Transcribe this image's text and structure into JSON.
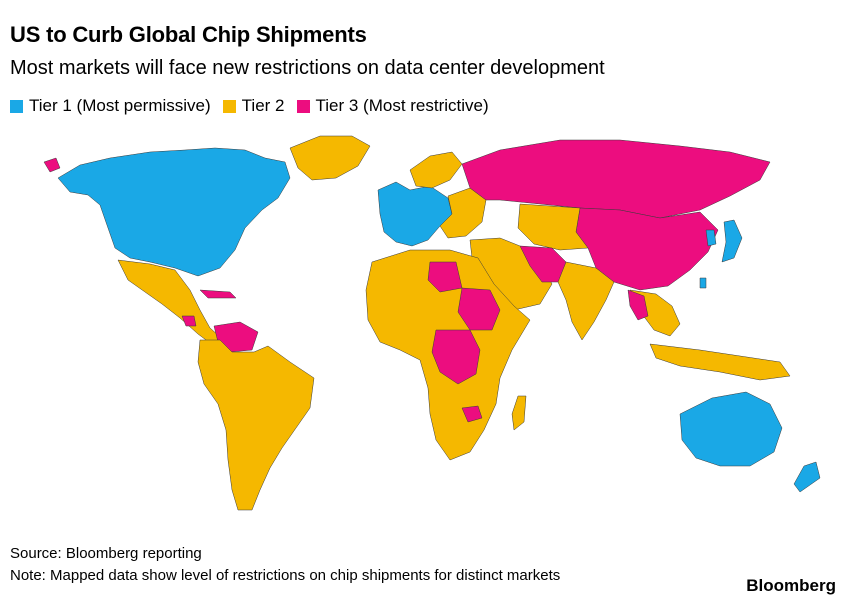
{
  "title": "US to Curb Global Chip Shipments",
  "subtitle": "Most markets will face new restrictions on data center development",
  "legend": [
    {
      "label": "Tier 1 (Most permissive)",
      "color": "#1aa8e6"
    },
    {
      "label": "Tier 2",
      "color": "#f5b800"
    },
    {
      "label": "Tier 3 (Most restrictive)",
      "color": "#ec0d7f"
    }
  ],
  "map": {
    "regions": [
      {
        "name": "north-america",
        "tier": 1
      },
      {
        "name": "greenland",
        "tier": 2
      },
      {
        "name": "alaska-east-russia",
        "tier": 3
      },
      {
        "name": "mexico-central-america",
        "tier": 2
      },
      {
        "name": "cuba",
        "tier": 3
      },
      {
        "name": "nicaragua",
        "tier": 3
      },
      {
        "name": "venezuela",
        "tier": 3
      },
      {
        "name": "south-america",
        "tier": 2
      },
      {
        "name": "western-europe",
        "tier": 1
      },
      {
        "name": "eastern-europe",
        "tier": 2
      },
      {
        "name": "russia",
        "tier": 3
      },
      {
        "name": "china",
        "tier": 3
      },
      {
        "name": "middle-east",
        "tier": 2
      },
      {
        "name": "iran",
        "tier": 3
      },
      {
        "name": "india",
        "tier": 2
      },
      {
        "name": "africa",
        "tier": 2
      },
      {
        "name": "libya",
        "tier": 3
      },
      {
        "name": "sudan-region",
        "tier": 3
      },
      {
        "name": "central-africa",
        "tier": 3
      },
      {
        "name": "zimbabwe",
        "tier": 3
      },
      {
        "name": "southeast-asia",
        "tier": 2
      },
      {
        "name": "myanmar-cambodia",
        "tier": 3
      },
      {
        "name": "japan",
        "tier": 1
      },
      {
        "name": "korea",
        "tier": 1
      },
      {
        "name": "taiwan",
        "tier": 1
      },
      {
        "name": "australia",
        "tier": 1
      },
      {
        "name": "new-zealand",
        "tier": 1
      },
      {
        "name": "madagascar",
        "tier": 2
      },
      {
        "name": "indonesia",
        "tier": 2
      }
    ]
  },
  "source": "Source: Bloomberg reporting",
  "note": "Note: Mapped data show level of restrictions on chip shipments for distinct markets",
  "brand": "Bloomberg"
}
